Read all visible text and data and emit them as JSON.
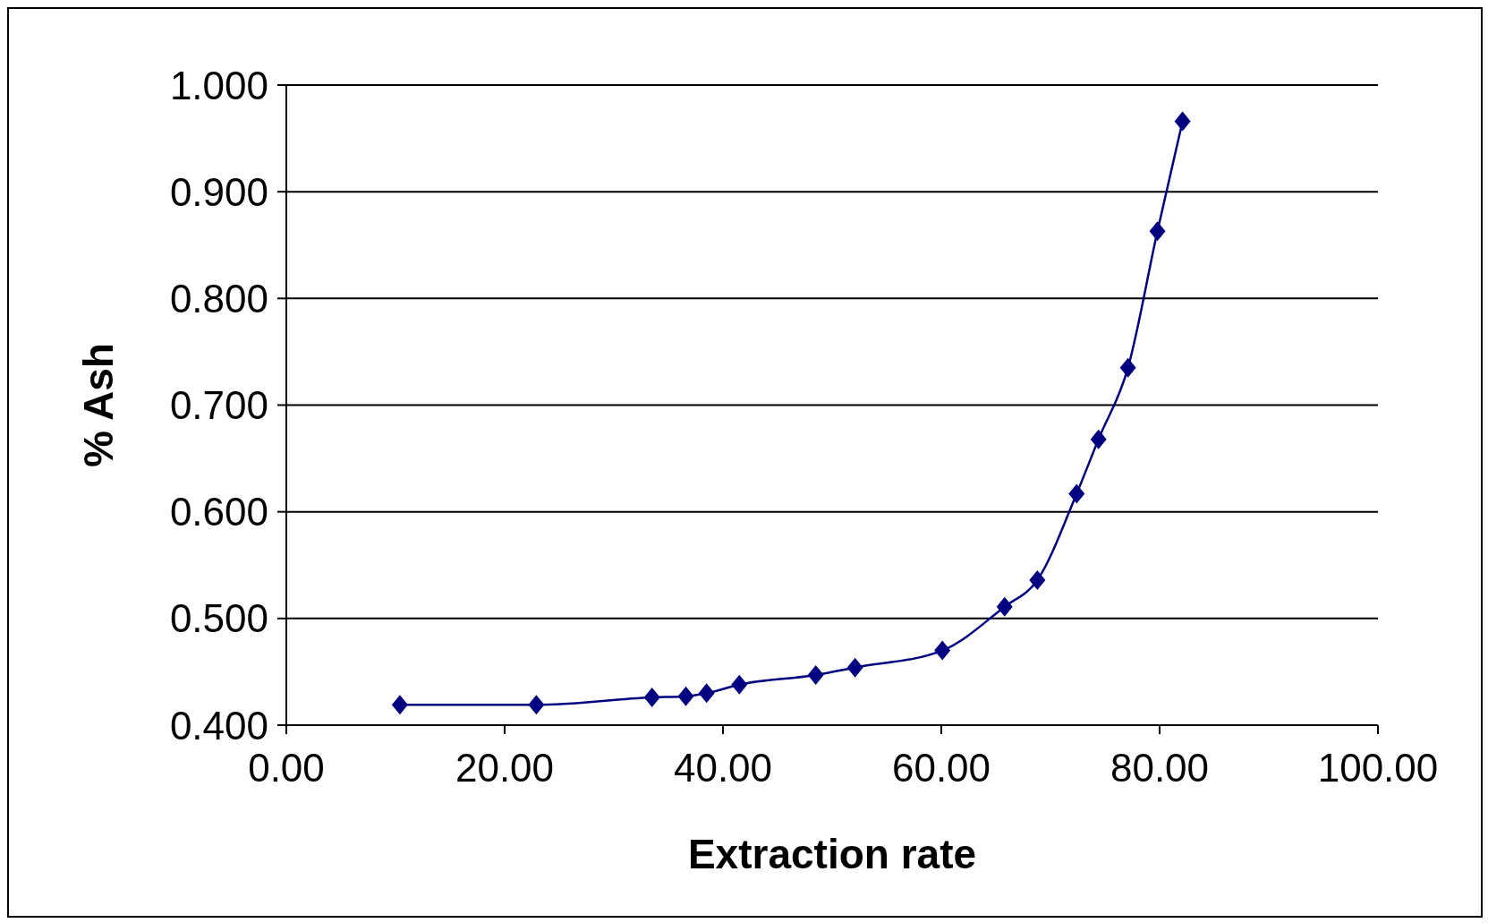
{
  "chart_data": {
    "type": "line",
    "xlabel": "Extraction rate",
    "ylabel": "% Ash",
    "x": [
      10.4,
      22.9,
      33.5,
      36.6,
      38.5,
      41.5,
      48.5,
      52.1,
      60.1,
      65.8,
      68.8,
      72.4,
      74.4,
      77.1,
      79.8,
      82.1
    ],
    "values": [
      0.419,
      0.419,
      0.426,
      0.427,
      0.43,
      0.438,
      0.447,
      0.454,
      0.47,
      0.511,
      0.536,
      0.617,
      0.668,
      0.735,
      0.863,
      0.966
    ],
    "color": "#000080",
    "marker": "diamond",
    "line_style": "solid",
    "grid": "y",
    "legend": false,
    "xlim": [
      0,
      100
    ],
    "xticks": [
      {
        "value": 0,
        "label": "0.00"
      },
      {
        "value": 20,
        "label": "20.00"
      },
      {
        "value": 40,
        "label": "40.00"
      },
      {
        "value": 60,
        "label": "60.00"
      },
      {
        "value": 80,
        "label": "80.00"
      },
      {
        "value": 100,
        "label": "100.00"
      }
    ],
    "ylim": [
      0.4,
      1
    ],
    "yticks": [
      {
        "value": 0.4,
        "label": "0.400"
      },
      {
        "value": 0.5,
        "label": "0.500"
      },
      {
        "value": 0.6,
        "label": "0.600"
      },
      {
        "value": 0.7,
        "label": "0.700"
      },
      {
        "value": 0.8,
        "label": "0.800"
      },
      {
        "value": 0.9,
        "label": "0.900"
      },
      {
        "value": 1,
        "label": "1.000"
      }
    ]
  }
}
